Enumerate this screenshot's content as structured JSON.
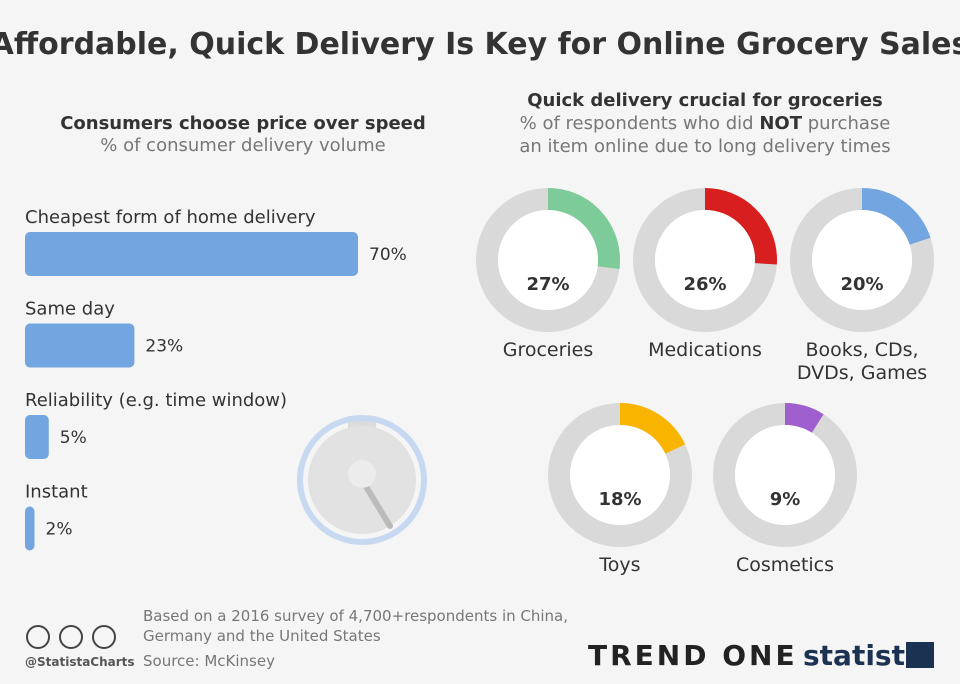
{
  "title": "Affordable, Quick Delivery Is Key for Online Grocery Sales",
  "chart_data": [
    {
      "type": "bar",
      "orientation": "horizontal",
      "title": "Consumers choose price over speed",
      "subtitle": "% of consumer delivery volume",
      "categories": [
        "Cheapest form of home delivery",
        "Same day",
        "Reliability (e.g. time window)",
        "Instant"
      ],
      "values": [
        70,
        23,
        5,
        2
      ],
      "value_labels": [
        "70%",
        "23%",
        "5%",
        "2%"
      ],
      "color": "#73a6e0"
    },
    {
      "type": "donut",
      "title": "Quick delivery crucial for groceries",
      "subtitle": [
        [
          "% of respondents who did ",
          "NOT",
          " purchase"
        ],
        [
          "an item online due to long delivery times"
        ]
      ],
      "categories": [
        [
          "Groceries"
        ],
        [
          "Medications"
        ],
        [
          "Books, CDs,",
          "DVDs, Games"
        ],
        [
          "Toys"
        ],
        [
          "Cosmetics"
        ]
      ],
      "values": [
        27,
        26,
        20,
        18,
        9
      ],
      "value_labels": [
        "27%",
        "26%",
        "20%",
        "18%",
        "9%"
      ],
      "colors": [
        "#7dcb98",
        "#d71f1f",
        "#73a6e0",
        "#f9b400",
        "#a05fcf"
      ],
      "track_color": "#d9d9d9"
    }
  ],
  "footer": {
    "note": [
      "Based on a 2016 survey of 4,700+respondents in China,",
      "Germany and the United States"
    ],
    "source": "Source: McKinsey",
    "handle": "@StatistaCharts",
    "partner": "TREND ONE",
    "brand": "statista"
  }
}
